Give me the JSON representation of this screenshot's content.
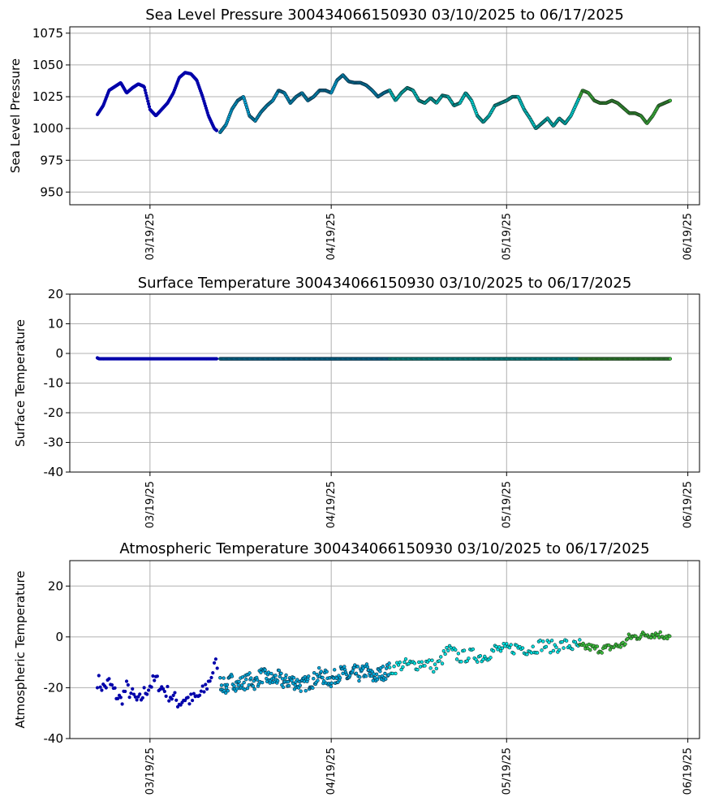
{
  "chart_data": [
    {
      "type": "scatter",
      "key": "slp",
      "title": "Sea Level Pressure 300434066150930  03/10/2025 to 06/17/2025",
      "ylabel": "Sea Level Pressure",
      "xlabel": "",
      "ylim": [
        940,
        1080
      ],
      "yticks": [
        950,
        975,
        1000,
        1025,
        1050,
        1075
      ],
      "xticks": [
        {
          "day": 9,
          "label": "03/19/25"
        },
        {
          "day": 40,
          "label": "04/19/25"
        },
        {
          "day": 70,
          "label": "05/19/25"
        },
        {
          "day": 101,
          "label": "06/19/25"
        }
      ],
      "grid": true,
      "series": [
        {
          "name": "segment-1",
          "color": "#0000aa",
          "edge": "#0000aa",
          "start": 0,
          "end": 20.5,
          "spacing": 0.12,
          "size": 3.6,
          "points": [
            [
              0,
              1011
            ],
            [
              1,
              1018
            ],
            [
              2,
              1030
            ],
            [
              3,
              1033
            ],
            [
              4,
              1036
            ],
            [
              5,
              1028
            ],
            [
              6,
              1032
            ],
            [
              7,
              1035
            ],
            [
              8,
              1033
            ],
            [
              9,
              1015
            ],
            [
              10,
              1010
            ],
            [
              11,
              1015
            ],
            [
              12,
              1020
            ],
            [
              13,
              1028
            ],
            [
              14,
              1040
            ],
            [
              15,
              1044
            ],
            [
              16,
              1043
            ],
            [
              17,
              1038
            ],
            [
              18,
              1025
            ],
            [
              19,
              1010
            ],
            [
              20,
              1000
            ],
            [
              20.5,
              998
            ]
          ]
        },
        {
          "name": "segment-2",
          "color": "#00a8d8",
          "edge": "#0a2a40",
          "start": 21,
          "end": 50,
          "spacing": 0.12,
          "size": 3.8,
          "points": [
            [
              21,
              997
            ],
            [
              22,
              1003
            ],
            [
              23,
              1015
            ],
            [
              24,
              1022
            ],
            [
              25,
              1025
            ],
            [
              26,
              1010
            ],
            [
              27,
              1006
            ],
            [
              28,
              1013
            ],
            [
              29,
              1018
            ],
            [
              30,
              1022
            ],
            [
              31,
              1030
            ],
            [
              32,
              1028
            ],
            [
              33,
              1020
            ],
            [
              34,
              1025
            ],
            [
              35,
              1028
            ],
            [
              36,
              1022
            ],
            [
              37,
              1025
            ],
            [
              38,
              1030
            ],
            [
              39,
              1030
            ],
            [
              40,
              1028
            ],
            [
              41,
              1038
            ],
            [
              42,
              1042
            ],
            [
              43,
              1037
            ],
            [
              44,
              1036
            ],
            [
              45,
              1036
            ],
            [
              46,
              1034
            ],
            [
              47,
              1030
            ],
            [
              48,
              1025
            ],
            [
              49,
              1028
            ],
            [
              50,
              1030
            ]
          ]
        },
        {
          "name": "segment-3",
          "color": "#00e0e0",
          "edge": "#0a3030",
          "start": 50,
          "end": 82.5,
          "spacing": 0.12,
          "size": 3.8,
          "points": [
            [
              50,
              1030
            ],
            [
              51,
              1022
            ],
            [
              52,
              1028
            ],
            [
              53,
              1032
            ],
            [
              54,
              1030
            ],
            [
              55,
              1022
            ],
            [
              56,
              1020
            ],
            [
              57,
              1024
            ],
            [
              58,
              1020
            ],
            [
              59,
              1026
            ],
            [
              60,
              1025
            ],
            [
              61,
              1018
            ],
            [
              62,
              1020
            ],
            [
              63,
              1028
            ],
            [
              64,
              1022
            ],
            [
              65,
              1010
            ],
            [
              66,
              1005
            ],
            [
              67,
              1010
            ],
            [
              68,
              1018
            ],
            [
              69,
              1020
            ],
            [
              70,
              1022
            ],
            [
              71,
              1025
            ],
            [
              72,
              1025
            ],
            [
              73,
              1015
            ],
            [
              74,
              1008
            ],
            [
              75,
              1000
            ],
            [
              76,
              1004
            ],
            [
              77,
              1008
            ],
            [
              78,
              1002
            ],
            [
              79,
              1008
            ],
            [
              80,
              1004
            ],
            [
              81,
              1010
            ],
            [
              82,
              1020
            ],
            [
              82.5,
              1025
            ]
          ]
        },
        {
          "name": "segment-4",
          "color": "#3cbf3c",
          "edge": "#1e3a1e",
          "start": 82.5,
          "end": 98,
          "spacing": 0.12,
          "size": 3.8,
          "points": [
            [
              82.5,
              1025
            ],
            [
              83,
              1030
            ],
            [
              84,
              1028
            ],
            [
              85,
              1022
            ],
            [
              86,
              1020
            ],
            [
              87,
              1020
            ],
            [
              88,
              1022
            ],
            [
              89,
              1020
            ],
            [
              90,
              1016
            ],
            [
              91,
              1012
            ],
            [
              92,
              1012
            ],
            [
              93,
              1010
            ],
            [
              94,
              1004
            ],
            [
              95,
              1010
            ],
            [
              96,
              1018
            ],
            [
              97,
              1020
            ],
            [
              98,
              1022
            ]
          ]
        }
      ]
    },
    {
      "type": "scatter",
      "key": "sst",
      "title": "Surface Temperature 300434066150930  03/10/2025 to 06/17/2025",
      "ylabel": "Surface Temperature",
      "xlabel": "",
      "ylim": [
        -40,
        20
      ],
      "yticks": [
        -40,
        -30,
        -20,
        -10,
        0,
        10,
        20
      ],
      "xticks": [
        {
          "day": 9,
          "label": "03/19/25"
        },
        {
          "day": 40,
          "label": "04/19/25"
        },
        {
          "day": 70,
          "label": "05/19/25"
        },
        {
          "day": 101,
          "label": "06/19/25"
        }
      ],
      "grid": true,
      "series": [
        {
          "name": "segment-1",
          "color": "#0000aa",
          "edge": "#0000aa",
          "start": 0,
          "end": 20.5,
          "spacing": 0.12,
          "size": 3.6,
          "points": [
            [
              0,
              -1.5
            ],
            [
              0.3,
              -1.8
            ],
            [
              20.5,
              -1.8
            ]
          ]
        },
        {
          "name": "segment-2",
          "color": "#00a8d8",
          "edge": "#0a2a40",
          "start": 21,
          "end": 50,
          "spacing": 0.12,
          "size": 3.8,
          "points": [
            [
              21,
              -1.8
            ],
            [
              50,
              -1.8
            ]
          ]
        },
        {
          "name": "segment-3",
          "color": "#00e0e0",
          "edge": "#0a3030",
          "start": 50,
          "end": 82.5,
          "spacing": 0.12,
          "size": 3.8,
          "points": [
            [
              50,
              -1.8
            ],
            [
              82.5,
              -1.8
            ]
          ]
        },
        {
          "name": "segment-4",
          "color": "#3cbf3c",
          "edge": "#1e3a1e",
          "start": 82.5,
          "end": 98,
          "spacing": 0.12,
          "size": 3.8,
          "points": [
            [
              82.5,
              -1.8
            ],
            [
              98,
              -1.8
            ]
          ]
        }
      ]
    },
    {
      "type": "scatter",
      "key": "airt",
      "title": "Atmospheric Temperature 300434066150930  03/10/2025 to 06/17/2025",
      "ylabel": "Atmospheric Temperature",
      "xlabel": "",
      "ylim": [
        -40,
        30
      ],
      "yticks": [
        -40,
        -20,
        0,
        20
      ],
      "xticks": [
        {
          "day": 9,
          "label": "03/19/25"
        },
        {
          "day": 40,
          "label": "04/19/25"
        },
        {
          "day": 70,
          "label": "05/19/25"
        },
        {
          "day": 101,
          "label": "06/19/25"
        }
      ],
      "grid": true,
      "series": [
        {
          "name": "segment-1",
          "color": "#0000aa",
          "edge": "#0000aa",
          "start": 0,
          "end": 20.5,
          "spacing": 0.25,
          "size": 3.6,
          "noise": 3,
          "points": [
            [
              0,
              -17
            ],
            [
              1,
              -20
            ],
            [
              2,
              -18
            ],
            [
              3,
              -22
            ],
            [
              4,
              -25
            ],
            [
              5,
              -20
            ],
            [
              6,
              -23
            ],
            [
              7,
              -26
            ],
            [
              8,
              -22
            ],
            [
              9,
              -19
            ],
            [
              10,
              -17
            ],
            [
              11,
              -20
            ],
            [
              12,
              -22
            ],
            [
              13,
              -24
            ],
            [
              14,
              -26
            ],
            [
              15,
              -24
            ],
            [
              16,
              -25
            ],
            [
              17,
              -24
            ],
            [
              18,
              -22
            ],
            [
              19,
              -18
            ],
            [
              20,
              -12
            ],
            [
              20.5,
              -10
            ]
          ]
        },
        {
          "name": "segment-2",
          "color": "#00a8d8",
          "edge": "#0a2a40",
          "start": 21,
          "end": 50,
          "spacing": 0.12,
          "size": 3.8,
          "noise": 3,
          "points": [
            [
              21,
              -18
            ],
            [
              22,
              -20
            ],
            [
              23,
              -17
            ],
            [
              24,
              -19
            ],
            [
              25,
              -18
            ],
            [
              26,
              -17
            ],
            [
              27,
              -18
            ],
            [
              28,
              -15
            ],
            [
              29,
              -16
            ],
            [
              30,
              -17
            ],
            [
              31,
              -16
            ],
            [
              32,
              -18
            ],
            [
              33,
              -17
            ],
            [
              34,
              -18
            ],
            [
              35,
              -19
            ],
            [
              36,
              -18
            ],
            [
              37,
              -17
            ],
            [
              38,
              -15
            ],
            [
              39,
              -16
            ],
            [
              40,
              -17
            ],
            [
              41,
              -15
            ],
            [
              42,
              -14
            ],
            [
              43,
              -16
            ],
            [
              44,
              -14
            ],
            [
              45,
              -15
            ],
            [
              46,
              -13
            ],
            [
              47,
              -16
            ],
            [
              48,
              -15
            ],
            [
              49,
              -14
            ],
            [
              50,
              -13
            ]
          ]
        },
        {
          "name": "segment-3",
          "color": "#00e0e0",
          "edge": "#0a3030",
          "start": 50,
          "end": 82.5,
          "spacing": 0.25,
          "size": 3.8,
          "noise": 2.5,
          "points": [
            [
              50,
              -13
            ],
            [
              52,
              -11
            ],
            [
              54,
              -11
            ],
            [
              56,
              -10
            ],
            [
              58,
              -12
            ],
            [
              60,
              -5
            ],
            [
              62,
              -8
            ],
            [
              64,
              -7
            ],
            [
              66,
              -8
            ],
            [
              68,
              -5
            ],
            [
              70,
              -5
            ],
            [
              72,
              -4
            ],
            [
              74,
              -5
            ],
            [
              76,
              -3
            ],
            [
              78,
              -4
            ],
            [
              80,
              -3
            ],
            [
              82,
              -4
            ],
            [
              82.5,
              -3
            ]
          ]
        },
        {
          "name": "segment-4",
          "color": "#3cbf3c",
          "edge": "#1e3a1e",
          "start": 82.5,
          "end": 98,
          "spacing": 0.2,
          "size": 3.8,
          "noise": 1.5,
          "points": [
            [
              82.5,
              -4
            ],
            [
              84,
              -4
            ],
            [
              86,
              -5
            ],
            [
              88,
              -4
            ],
            [
              90,
              -3
            ],
            [
              91,
              0
            ],
            [
              92,
              0
            ],
            [
              94,
              1
            ],
            [
              96,
              1
            ],
            [
              98,
              0
            ]
          ]
        }
      ]
    }
  ]
}
